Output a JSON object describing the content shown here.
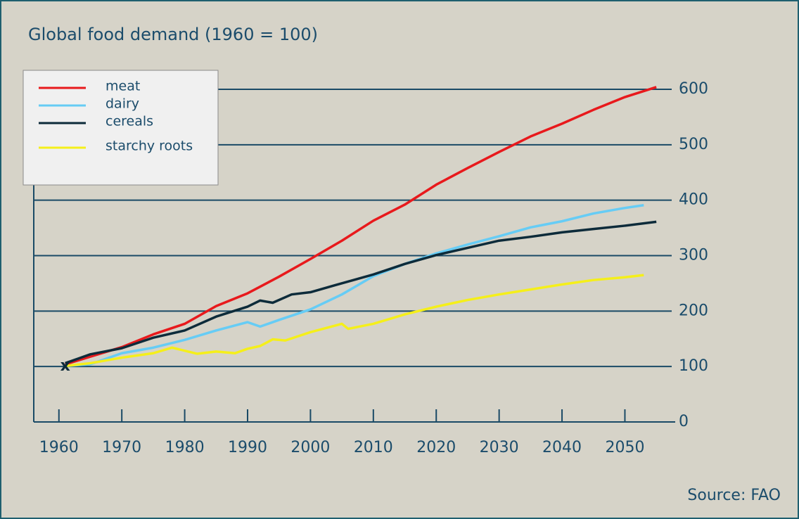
{
  "chart_data": {
    "type": "line",
    "title": "Global food demand (1960 = 100)",
    "source": "Source: FAO",
    "annotations": [
      {
        "text": "x",
        "x": 1961,
        "y": 100
      }
    ],
    "xlim": [
      1956,
      2058
    ],
    "xticks": [
      1960,
      1970,
      1980,
      1990,
      2000,
      2010,
      2020,
      2030,
      2040,
      2050
    ],
    "ylim": [
      0,
      600
    ],
    "yticks": [
      0,
      100,
      200,
      300,
      400,
      500,
      600
    ],
    "y_axis_side": "right",
    "grid": true,
    "legend": "upper left",
    "series": [
      {
        "name": "meat",
        "color": "#e8191c",
        "x": [
          1961,
          1970,
          1975,
          1980,
          1985,
          1990,
          1995,
          2000,
          2005,
          2010,
          2015,
          2020,
          2025,
          2030,
          2035,
          2040,
          2045,
          2050,
          2055
        ],
        "values": [
          104,
          135,
          158,
          177,
          209,
          232,
          262,
          294,
          327,
          363,
          392,
          428,
          458,
          487,
          515,
          538,
          563,
          586,
          604
        ]
      },
      {
        "name": "dairy",
        "color": "#66ccf5",
        "x": [
          1961,
          1965,
          1970,
          1975,
          1980,
          1985,
          1990,
          1992,
          1995,
          2000,
          2005,
          2010,
          2015,
          2020,
          2025,
          2030,
          2035,
          2040,
          2045,
          2050,
          2053
        ],
        "values": [
          101,
          104,
          124,
          134,
          148,
          165,
          180,
          172,
          184,
          203,
          230,
          263,
          285,
          304,
          320,
          335,
          351,
          362,
          376,
          386,
          391
        ]
      },
      {
        "name": "cereals",
        "color": "#0d2b3a",
        "x": [
          1961,
          1965,
          1970,
          1975,
          1980,
          1985,
          1990,
          1992,
          1994,
          1997,
          2000,
          2004,
          2010,
          2015,
          2020,
          2025,
          2030,
          2035,
          2040,
          2045,
          2050,
          2055
        ],
        "values": [
          106,
          122,
          133,
          152,
          165,
          190,
          208,
          219,
          215,
          230,
          234,
          247,
          266,
          285,
          301,
          314,
          327,
          334,
          342,
          348,
          354,
          361
        ]
      },
      {
        "name": "starchy roots",
        "color": "#f5ef1a",
        "x": [
          1961,
          1965,
          1970,
          1975,
          1978,
          1982,
          1985,
          1988,
          1990,
          1992,
          1994,
          1996,
          2000,
          2005,
          2006,
          2010,
          2015,
          2020,
          2025,
          2030,
          2035,
          2040,
          2045,
          2050,
          2053
        ],
        "values": [
          101,
          106,
          116,
          124,
          134,
          123,
          127,
          124,
          132,
          137,
          149,
          147,
          162,
          177,
          168,
          177,
          194,
          208,
          220,
          230,
          239,
          248,
          256,
          261,
          265
        ]
      }
    ]
  }
}
